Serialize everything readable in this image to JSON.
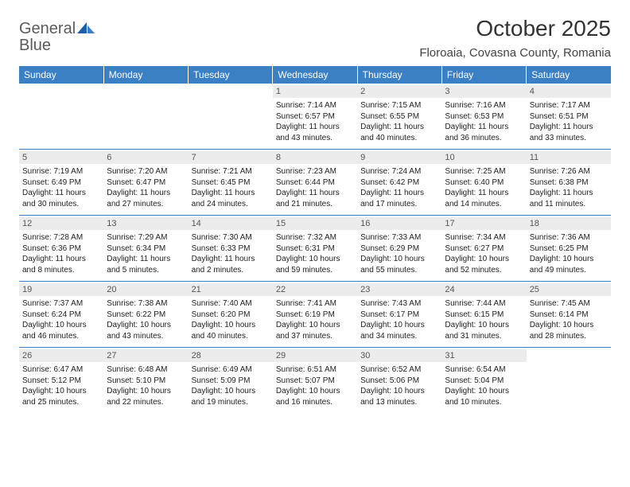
{
  "logo": {
    "text1": "General",
    "text2": "Blue"
  },
  "title": "October 2025",
  "location": "Floroaia, Covasna County, Romania",
  "colors": {
    "header_bg": "#3b7fc4",
    "header_text": "#ffffff",
    "daynum_bg": "#ececec",
    "daynum_text": "#555555",
    "body_text": "#222222",
    "rule": "#3b7fc4"
  },
  "weekdays": [
    "Sunday",
    "Monday",
    "Tuesday",
    "Wednesday",
    "Thursday",
    "Friday",
    "Saturday"
  ],
  "weeks": [
    [
      null,
      null,
      null,
      {
        "n": "1",
        "sr": "Sunrise: 7:14 AM",
        "ss": "Sunset: 6:57 PM",
        "d1": "Daylight: 11 hours",
        "d2": "and 43 minutes."
      },
      {
        "n": "2",
        "sr": "Sunrise: 7:15 AM",
        "ss": "Sunset: 6:55 PM",
        "d1": "Daylight: 11 hours",
        "d2": "and 40 minutes."
      },
      {
        "n": "3",
        "sr": "Sunrise: 7:16 AM",
        "ss": "Sunset: 6:53 PM",
        "d1": "Daylight: 11 hours",
        "d2": "and 36 minutes."
      },
      {
        "n": "4",
        "sr": "Sunrise: 7:17 AM",
        "ss": "Sunset: 6:51 PM",
        "d1": "Daylight: 11 hours",
        "d2": "and 33 minutes."
      }
    ],
    [
      {
        "n": "5",
        "sr": "Sunrise: 7:19 AM",
        "ss": "Sunset: 6:49 PM",
        "d1": "Daylight: 11 hours",
        "d2": "and 30 minutes."
      },
      {
        "n": "6",
        "sr": "Sunrise: 7:20 AM",
        "ss": "Sunset: 6:47 PM",
        "d1": "Daylight: 11 hours",
        "d2": "and 27 minutes."
      },
      {
        "n": "7",
        "sr": "Sunrise: 7:21 AM",
        "ss": "Sunset: 6:45 PM",
        "d1": "Daylight: 11 hours",
        "d2": "and 24 minutes."
      },
      {
        "n": "8",
        "sr": "Sunrise: 7:23 AM",
        "ss": "Sunset: 6:44 PM",
        "d1": "Daylight: 11 hours",
        "d2": "and 21 minutes."
      },
      {
        "n": "9",
        "sr": "Sunrise: 7:24 AM",
        "ss": "Sunset: 6:42 PM",
        "d1": "Daylight: 11 hours",
        "d2": "and 17 minutes."
      },
      {
        "n": "10",
        "sr": "Sunrise: 7:25 AM",
        "ss": "Sunset: 6:40 PM",
        "d1": "Daylight: 11 hours",
        "d2": "and 14 minutes."
      },
      {
        "n": "11",
        "sr": "Sunrise: 7:26 AM",
        "ss": "Sunset: 6:38 PM",
        "d1": "Daylight: 11 hours",
        "d2": "and 11 minutes."
      }
    ],
    [
      {
        "n": "12",
        "sr": "Sunrise: 7:28 AM",
        "ss": "Sunset: 6:36 PM",
        "d1": "Daylight: 11 hours",
        "d2": "and 8 minutes."
      },
      {
        "n": "13",
        "sr": "Sunrise: 7:29 AM",
        "ss": "Sunset: 6:34 PM",
        "d1": "Daylight: 11 hours",
        "d2": "and 5 minutes."
      },
      {
        "n": "14",
        "sr": "Sunrise: 7:30 AM",
        "ss": "Sunset: 6:33 PM",
        "d1": "Daylight: 11 hours",
        "d2": "and 2 minutes."
      },
      {
        "n": "15",
        "sr": "Sunrise: 7:32 AM",
        "ss": "Sunset: 6:31 PM",
        "d1": "Daylight: 10 hours",
        "d2": "and 59 minutes."
      },
      {
        "n": "16",
        "sr": "Sunrise: 7:33 AM",
        "ss": "Sunset: 6:29 PM",
        "d1": "Daylight: 10 hours",
        "d2": "and 55 minutes."
      },
      {
        "n": "17",
        "sr": "Sunrise: 7:34 AM",
        "ss": "Sunset: 6:27 PM",
        "d1": "Daylight: 10 hours",
        "d2": "and 52 minutes."
      },
      {
        "n": "18",
        "sr": "Sunrise: 7:36 AM",
        "ss": "Sunset: 6:25 PM",
        "d1": "Daylight: 10 hours",
        "d2": "and 49 minutes."
      }
    ],
    [
      {
        "n": "19",
        "sr": "Sunrise: 7:37 AM",
        "ss": "Sunset: 6:24 PM",
        "d1": "Daylight: 10 hours",
        "d2": "and 46 minutes."
      },
      {
        "n": "20",
        "sr": "Sunrise: 7:38 AM",
        "ss": "Sunset: 6:22 PM",
        "d1": "Daylight: 10 hours",
        "d2": "and 43 minutes."
      },
      {
        "n": "21",
        "sr": "Sunrise: 7:40 AM",
        "ss": "Sunset: 6:20 PM",
        "d1": "Daylight: 10 hours",
        "d2": "and 40 minutes."
      },
      {
        "n": "22",
        "sr": "Sunrise: 7:41 AM",
        "ss": "Sunset: 6:19 PM",
        "d1": "Daylight: 10 hours",
        "d2": "and 37 minutes."
      },
      {
        "n": "23",
        "sr": "Sunrise: 7:43 AM",
        "ss": "Sunset: 6:17 PM",
        "d1": "Daylight: 10 hours",
        "d2": "and 34 minutes."
      },
      {
        "n": "24",
        "sr": "Sunrise: 7:44 AM",
        "ss": "Sunset: 6:15 PM",
        "d1": "Daylight: 10 hours",
        "d2": "and 31 minutes."
      },
      {
        "n": "25",
        "sr": "Sunrise: 7:45 AM",
        "ss": "Sunset: 6:14 PM",
        "d1": "Daylight: 10 hours",
        "d2": "and 28 minutes."
      }
    ],
    [
      {
        "n": "26",
        "sr": "Sunrise: 6:47 AM",
        "ss": "Sunset: 5:12 PM",
        "d1": "Daylight: 10 hours",
        "d2": "and 25 minutes."
      },
      {
        "n": "27",
        "sr": "Sunrise: 6:48 AM",
        "ss": "Sunset: 5:10 PM",
        "d1": "Daylight: 10 hours",
        "d2": "and 22 minutes."
      },
      {
        "n": "28",
        "sr": "Sunrise: 6:49 AM",
        "ss": "Sunset: 5:09 PM",
        "d1": "Daylight: 10 hours",
        "d2": "and 19 minutes."
      },
      {
        "n": "29",
        "sr": "Sunrise: 6:51 AM",
        "ss": "Sunset: 5:07 PM",
        "d1": "Daylight: 10 hours",
        "d2": "and 16 minutes."
      },
      {
        "n": "30",
        "sr": "Sunrise: 6:52 AM",
        "ss": "Sunset: 5:06 PM",
        "d1": "Daylight: 10 hours",
        "d2": "and 13 minutes."
      },
      {
        "n": "31",
        "sr": "Sunrise: 6:54 AM",
        "ss": "Sunset: 5:04 PM",
        "d1": "Daylight: 10 hours",
        "d2": "and 10 minutes."
      },
      null
    ]
  ]
}
